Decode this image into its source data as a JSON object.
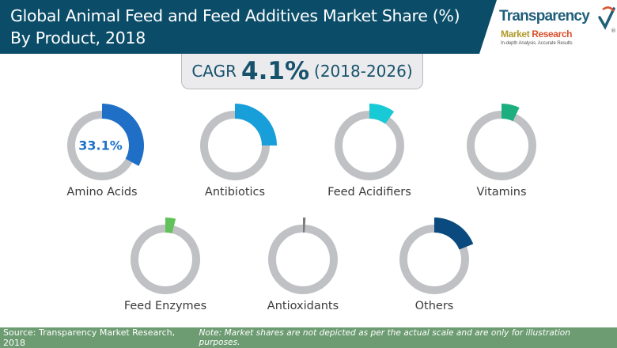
{
  "header": {
    "title_line1": "Global Animal Feed and Feed Additives Market Share (%)",
    "title_line2": "By Product, 2018"
  },
  "logo": {
    "line1": "Transparency",
    "line2a": "Market ",
    "line2b": "Research",
    "tagline": "In-depth Analysis. Accurate Results",
    "icon": "checkmark-icon"
  },
  "cagr": {
    "label": "CAGR",
    "value": "4.1%",
    "period": "(2018-2026)"
  },
  "chart_data": {
    "type": "pie",
    "title": "Global Animal Feed and Feed Additives Market Share (%) By Product, 2018",
    "subtitle": "CAGR 4.1% (2018-2026)",
    "unit": "%",
    "track_color": "#c0c1c4",
    "note_scale": "illustrative",
    "items": [
      {
        "name": "Amino Acids",
        "value": 33.1,
        "label": "33.1%",
        "color": "#1e6fc5"
      },
      {
        "name": "Antibiotics",
        "value": 25,
        "label": "",
        "color": "#189fd9"
      },
      {
        "name": "Feed Acidifiers",
        "value": 10,
        "label": "",
        "color": "#18c9d6"
      },
      {
        "name": "Vitamins",
        "value": 7,
        "label": "",
        "color": "#1cae7f"
      },
      {
        "name": "Feed Enzymes",
        "value": 4,
        "label": "",
        "color": "#62c25a"
      },
      {
        "name": "Antioxidants",
        "value": 1,
        "label": "",
        "color": "#7a7a7a"
      },
      {
        "name": "Others",
        "value": 19,
        "label": "",
        "color": "#0a4a7e"
      }
    ]
  },
  "footer": {
    "source": "Source: Transparency Market Research, 2018",
    "note": "Note: Market shares are not depicted as per the actual scale and are only for illustration purposes."
  }
}
